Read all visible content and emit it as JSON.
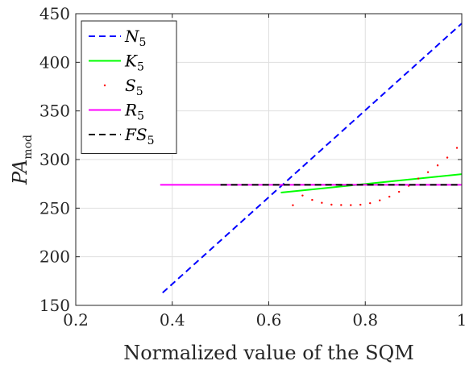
{
  "chart_data": {
    "type": "line",
    "xlabel": "Normalized value of the SQM",
    "ylabel": {
      "base": "PA",
      "sub": "mod"
    },
    "xlim": [
      0.2,
      1.0
    ],
    "ylim": [
      150,
      450
    ],
    "xticks": [
      0.2,
      0.4,
      0.6,
      0.8,
      1
    ],
    "xtick_labels": [
      "0.2",
      "0.4",
      "0.6",
      "0.8",
      "1"
    ],
    "yticks": [
      150,
      200,
      250,
      300,
      350,
      400,
      450
    ],
    "ytick_labels": [
      "150",
      "200",
      "250",
      "300",
      "350",
      "400",
      "450"
    ],
    "grid": true,
    "legend_position": "top-left",
    "series": [
      {
        "name": "N5",
        "label_base": "N",
        "label_sub": "5",
        "color": "#0000ff",
        "style": "dashed",
        "x": [
          0.38,
          1.0
        ],
        "y": [
          163,
          440
        ]
      },
      {
        "name": "K5",
        "label_base": "K",
        "label_sub": "5",
        "color": "#00ff00",
        "style": "solid",
        "x": [
          0.625,
          1.0
        ],
        "y": [
          266,
          285
        ]
      },
      {
        "name": "S5",
        "label_base": "S",
        "label_sub": "5",
        "color": "#ff0000",
        "style": "dotted",
        "x": [
          0.65,
          0.67,
          0.69,
          0.71,
          0.73,
          0.75,
          0.77,
          0.79,
          0.81,
          0.83,
          0.85,
          0.87,
          0.89,
          0.91,
          0.93,
          0.95,
          0.97,
          0.99
        ],
        "y": [
          253,
          263,
          258.5,
          255.5,
          253.6,
          253.2,
          253.1,
          253.5,
          255.1,
          258.0,
          261.8,
          266.8,
          273.0,
          280.5,
          287.0,
          294.0,
          302.0,
          312.0
        ]
      },
      {
        "name": "R5",
        "label_base": "R",
        "label_sub": "5",
        "color": "#ff00ff",
        "style": "solid",
        "x": [
          0.375,
          1.0
        ],
        "y": [
          274,
          274
        ]
      },
      {
        "name": "FS5",
        "label_base": "FS",
        "label_sub": "5",
        "color": "#000000",
        "style": "dashed",
        "x": [
          0.5,
          1.0
        ],
        "y": [
          274,
          274
        ]
      }
    ]
  }
}
